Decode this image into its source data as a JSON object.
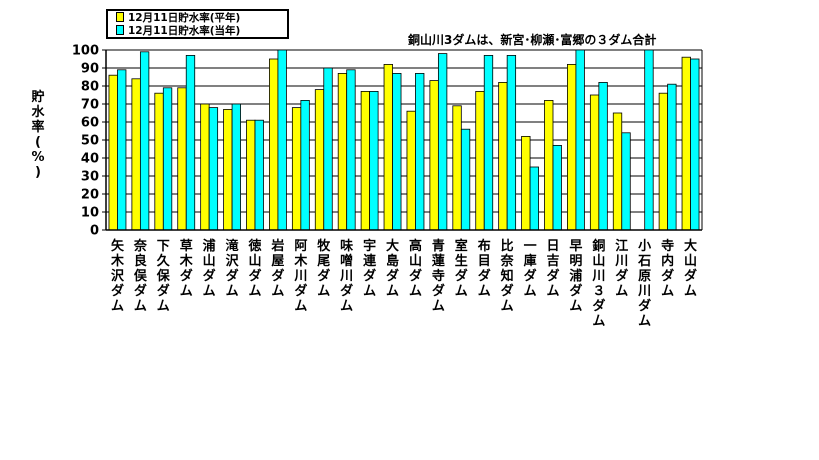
{
  "chart_data": {
    "type": "bar",
    "title": "",
    "annotation": "銅山川3ダムは、新宮･柳瀬･富郷の３ダム合計",
    "ylabel": "貯水率(%)",
    "ylim": [
      0,
      100
    ],
    "yticks": [
      0,
      10,
      20,
      30,
      40,
      50,
      60,
      70,
      80,
      90,
      100
    ],
    "grid": true,
    "legend_position": "top-left",
    "categories": [
      "矢木沢ダム",
      "奈良俣ダム",
      "下久保ダム",
      "草木ダム",
      "浦山ダム",
      "滝沢ダム",
      "徳山ダム",
      "岩屋ダム",
      "阿木川ダム",
      "牧尾ダム",
      "味噌川ダム",
      "宇連ダム",
      "大島ダム",
      "高山ダム",
      "青蓮寺ダム",
      "室生ダム",
      "布目ダム",
      "比奈知ダム",
      "一庫ダム",
      "日吉ダム",
      "早明浦ダム",
      "銅山川３ダム",
      "江川ダム",
      "小石原川ダム",
      "寺内ダム",
      "大山ダム"
    ],
    "series": [
      {
        "name": "12月11日貯水率(平年)",
        "color": "#ffff00",
        "values": [
          86,
          84,
          76,
          79,
          70,
          67,
          61,
          95,
          68,
          78,
          87,
          77,
          92,
          66,
          83,
          69,
          77,
          82,
          52,
          72,
          92,
          75,
          65,
          null,
          76,
          96
        ]
      },
      {
        "name": "12月11日貯水率(当年)",
        "color": "#00ffff",
        "values": [
          89,
          99,
          79,
          97,
          68,
          70,
          61,
          100,
          72,
          90,
          89,
          77,
          87,
          87,
          98,
          56,
          97,
          97,
          35,
          47,
          100,
          82,
          54,
          100,
          81,
          95
        ]
      }
    ]
  }
}
